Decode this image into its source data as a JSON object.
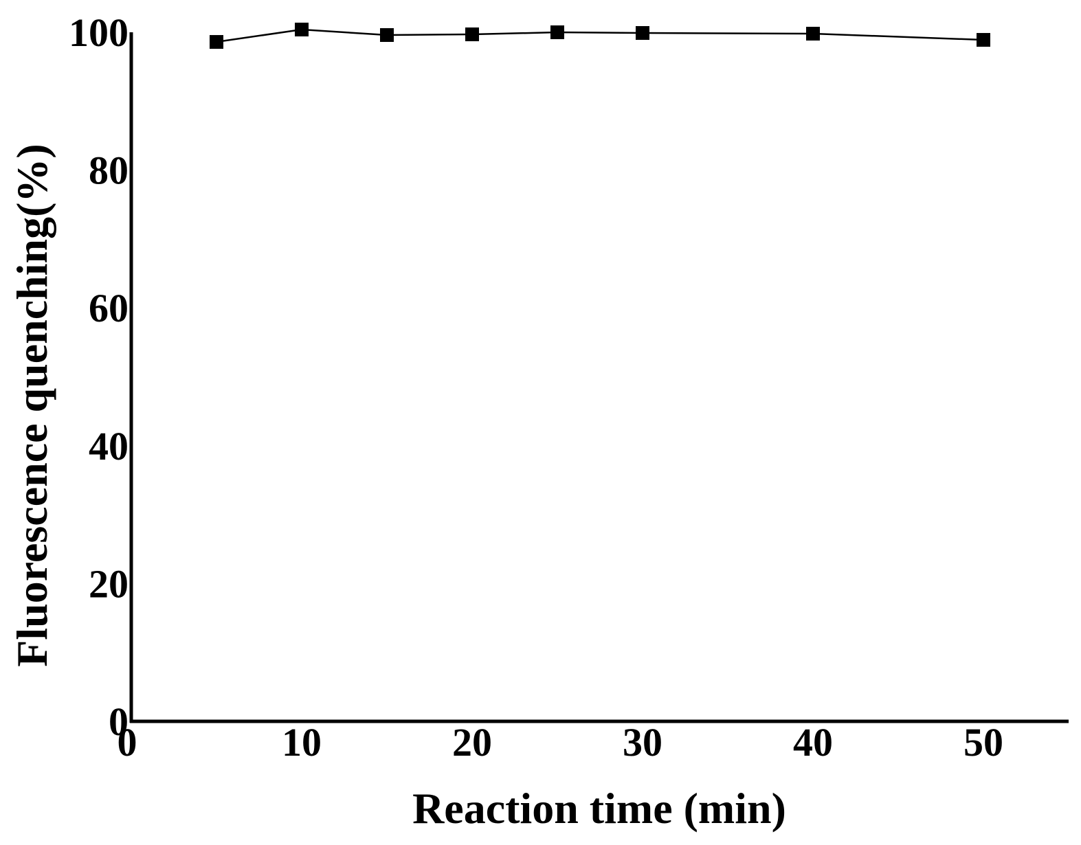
{
  "chart_data": {
    "type": "line",
    "title": "",
    "xlabel": "Reaction time (min)",
    "ylabel": "Fluorescence quenching(%)",
    "xlim": [
      0,
      55
    ],
    "ylim": [
      0,
      100
    ],
    "x_ticks": [
      0,
      10,
      20,
      30,
      40,
      50
    ],
    "y_ticks": [
      0,
      20,
      40,
      60,
      80,
      100
    ],
    "grid": false,
    "legend": "none",
    "series": [
      {
        "marker": "square",
        "color": "#000000",
        "x": [
          5,
          10,
          15,
          20,
          25,
          30,
          40,
          50
        ],
        "y": [
          98.6,
          100.4,
          99.6,
          99.7,
          100.0,
          99.9,
          99.8,
          98.9
        ]
      }
    ]
  }
}
